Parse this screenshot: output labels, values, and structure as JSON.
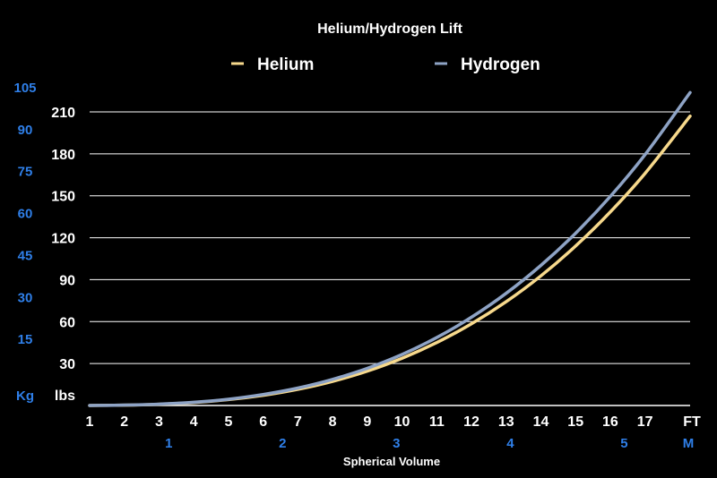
{
  "chart_data": {
    "type": "line",
    "title": "Helium/Hydrogen Lift",
    "xlabel": "Spherical Volume",
    "x_unit_primary": "FT",
    "x_unit_secondary": "M",
    "y_unit_primary": "lbs",
    "y_unit_secondary": "Kg",
    "xlim": [
      1,
      18.3
    ],
    "ylim": [
      0,
      210
    ],
    "x_ticks_ft": [
      "1",
      "2",
      "3",
      "4",
      "5",
      "6",
      "7",
      "8",
      "9",
      "10",
      "11",
      "12",
      "13",
      "14",
      "15",
      "16",
      "17"
    ],
    "x_ticks_m": [
      {
        "label": "1",
        "ft": 3.28
      },
      {
        "label": "2",
        "ft": 6.56
      },
      {
        "label": "3",
        "ft": 9.84
      },
      {
        "label": "4",
        "ft": 13.12
      },
      {
        "label": "5",
        "ft": 16.4
      }
    ],
    "y_ticks_lbs": [
      30,
      60,
      90,
      120,
      150,
      180,
      210
    ],
    "y_ticks_kg": [
      15,
      30,
      45,
      60,
      75,
      90,
      105
    ],
    "grid": true,
    "legend_position": "top",
    "series": [
      {
        "name": "Helium",
        "color": "#f7d98c",
        "x": [
          1,
          2,
          3,
          4,
          5,
          6,
          7,
          8,
          9,
          10,
          11,
          12,
          13,
          14,
          15,
          16,
          17,
          18.3
        ],
        "y": [
          0.03,
          0.27,
          0.9,
          2.1,
          4.2,
          7.3,
          11.6,
          17.3,
          24.6,
          33.8,
          45.0,
          58.4,
          74.2,
          92.7,
          114.0,
          138.4,
          166.0,
          207.0
        ]
      },
      {
        "name": "Hydrogen",
        "color": "#8ea3c5",
        "x": [
          1,
          2,
          3,
          4,
          5,
          6,
          7,
          8,
          9,
          10,
          11,
          12,
          13,
          14,
          15,
          16,
          17,
          18.3
        ],
        "y": [
          0.03,
          0.29,
          0.98,
          2.3,
          4.5,
          7.9,
          12.5,
          18.7,
          26.6,
          36.5,
          48.6,
          63.1,
          80.2,
          100.2,
          123.2,
          149.5,
          179.4,
          223.8
        ]
      }
    ]
  }
}
